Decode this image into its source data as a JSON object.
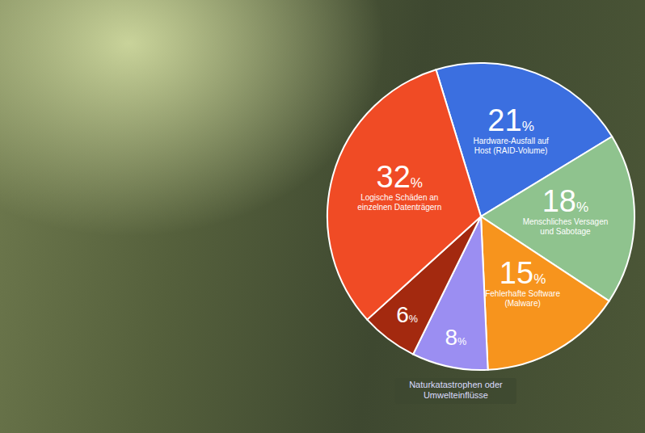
{
  "chart_data": {
    "type": "pie",
    "categories": [
      "Hardware-Ausfall auf Host (RAID-Volume)",
      "Menschliches Versagen und Sabotage",
      "Fehlerhafte Software (Malware)",
      "Naturkatastrophen oder Umwelteinflüsse",
      null,
      "Logische Schäden an einzelnen Datenträgern"
    ],
    "values": [
      21,
      18,
      15,
      8,
      6,
      32
    ],
    "value_labels": [
      "21%",
      "18%",
      "15%",
      "8%",
      "6%",
      "32%"
    ],
    "colors": [
      "#3b6fe0",
      "#8fc38e",
      "#f7941d",
      "#9b8ef2",
      "#a3290f",
      "#f04b25"
    ],
    "data_labels": true
  }
}
